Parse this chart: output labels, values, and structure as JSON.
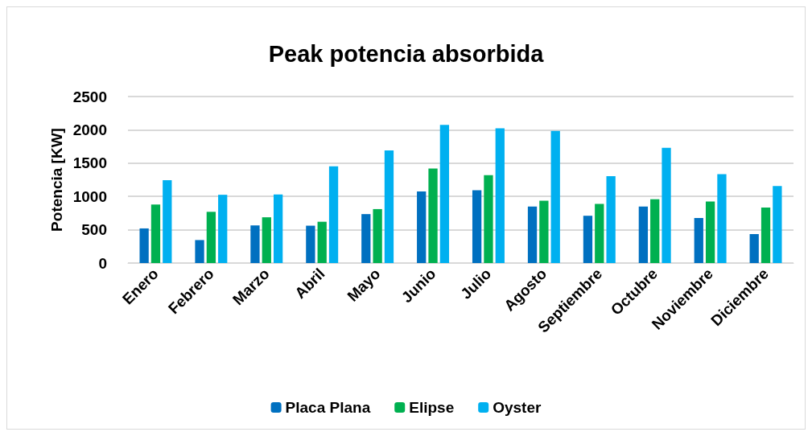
{
  "chart_data": {
    "type": "bar",
    "title": "Peak potencia absorbida",
    "ylabel": "Potencia [KW]",
    "categories": [
      "Enero",
      "Febrero",
      "Marzo",
      "Abril",
      "Mayo",
      "Junio",
      "Julio",
      "Agosto",
      "Septiembre",
      "Octubre",
      "Noviembre",
      "Diciembre"
    ],
    "series": [
      {
        "name": "Placa Plana",
        "color": "#0070c0",
        "values": [
          520,
          345,
          565,
          561,
          735,
          1074,
          1092,
          847,
          710,
          847,
          676,
          435
        ]
      },
      {
        "name": "Elipse",
        "color": "#00b050",
        "values": [
          880,
          769,
          687,
          620,
          810,
          1419,
          1319,
          936,
          888,
          958,
          925,
          832
        ]
      },
      {
        "name": "Oyster",
        "color": "#00b0f0",
        "values": [
          1245,
          1025,
          1029,
          1452,
          1690,
          2073,
          2024,
          1984,
          1304,
          1731,
          1334,
          1155
        ]
      }
    ],
    "ylim": [
      0,
      2500
    ],
    "yticks": [
      0,
      500,
      1000,
      1500,
      2000,
      2500
    ],
    "grid": "y",
    "legend": "bottom"
  }
}
